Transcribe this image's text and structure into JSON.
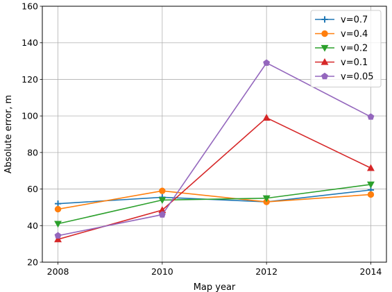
{
  "chart_data": {
    "type": "line",
    "x": [
      2008,
      2010,
      2012,
      2014
    ],
    "xticks": [
      "2008",
      "2010",
      "2012",
      "2014"
    ],
    "yticks": [
      "20",
      "40",
      "60",
      "80",
      "100",
      "120",
      "140",
      "160"
    ],
    "xlabel": "Map year",
    "ylabel": "Absolute error, m",
    "xlim": [
      2007.7,
      2014.3
    ],
    "ylim": [
      20,
      160
    ],
    "grid": true,
    "legend_position": "top-right",
    "series": [
      {
        "name": "v=0.7",
        "color": "#1f77b4",
        "marker": "plus",
        "values": [
          52,
          55.5,
          53,
          59.5
        ]
      },
      {
        "name": "v=0.4",
        "color": "#ff7f0e",
        "marker": "circle",
        "values": [
          49,
          59,
          53,
          57
        ]
      },
      {
        "name": "v=0.2",
        "color": "#2ca02c",
        "marker": "triangle-down",
        "values": [
          41,
          54,
          55,
          62.5
        ]
      },
      {
        "name": "v=0.1",
        "color": "#d62728",
        "marker": "triangle-up",
        "values": [
          32.5,
          48.5,
          99,
          71.5
        ]
      },
      {
        "name": "v=0.05",
        "color": "#9467bd",
        "marker": "pentagon",
        "values": [
          34.5,
          46,
          129,
          99.5
        ]
      }
    ]
  }
}
